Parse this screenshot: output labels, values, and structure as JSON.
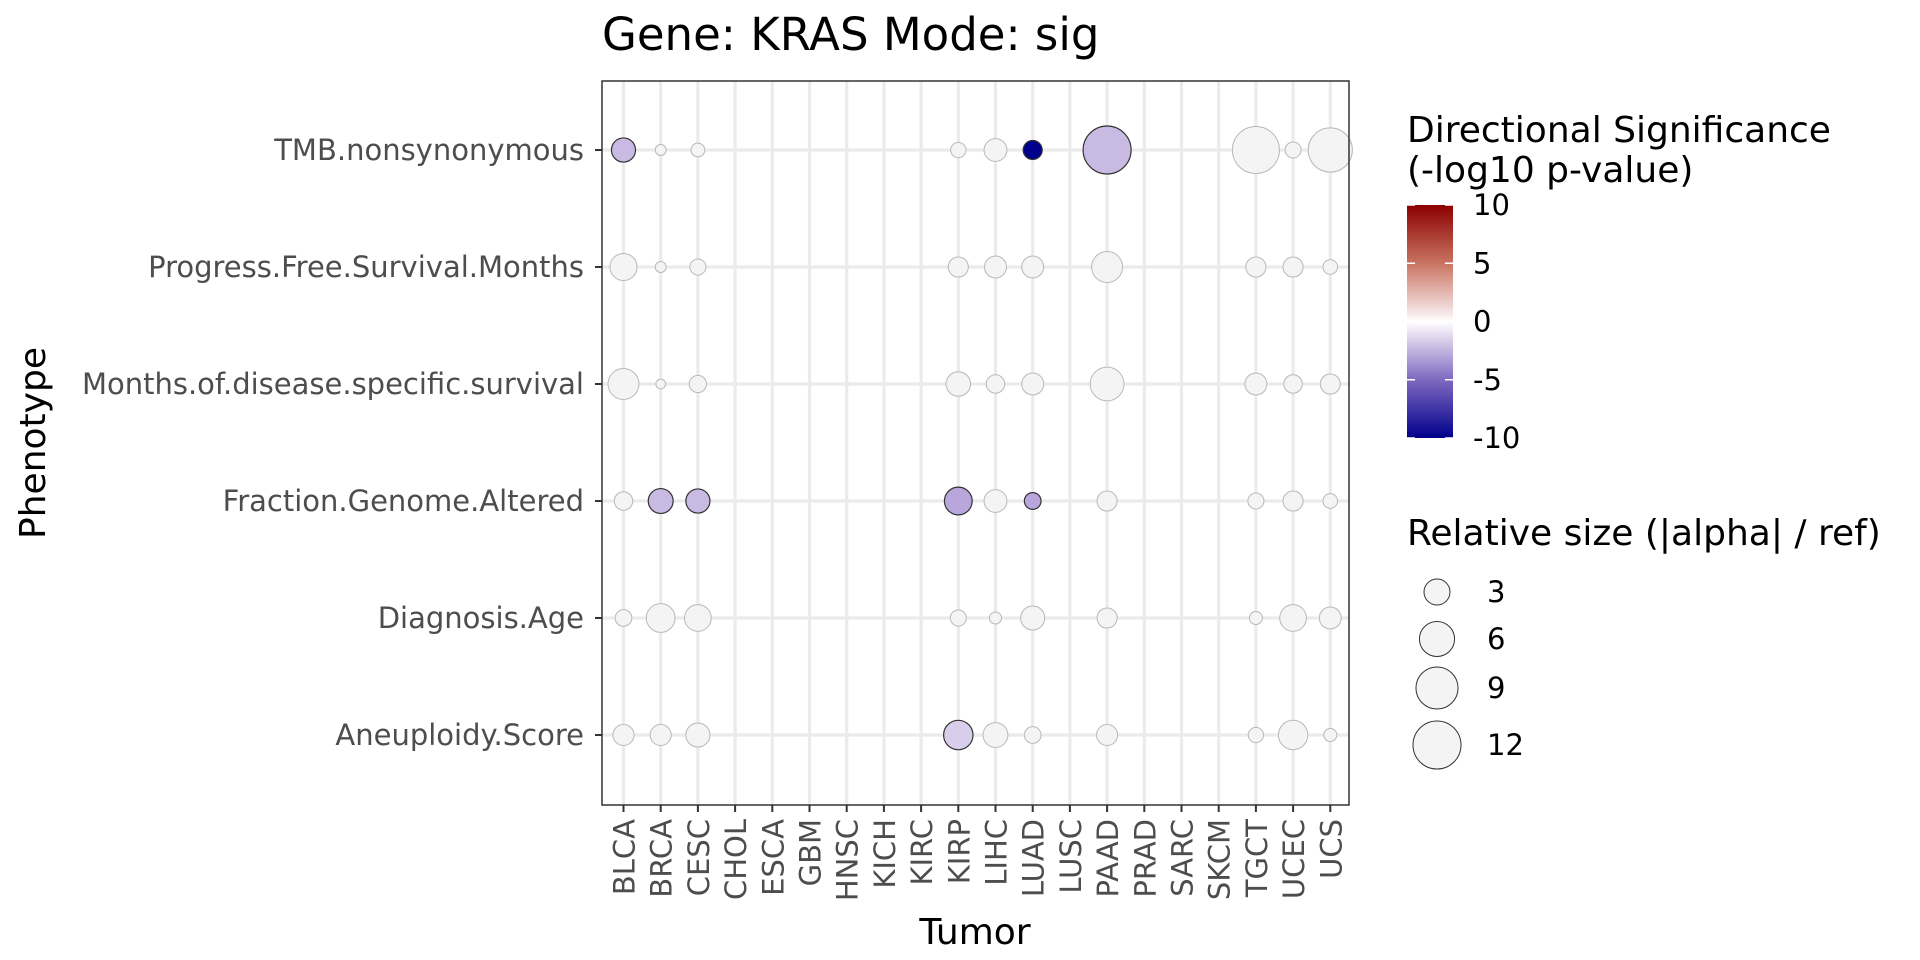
{
  "chart_data": {
    "type": "scatter",
    "title": "Gene: KRAS Mode: sig",
    "xlabel": "Tumor",
    "ylabel": "Phenotype",
    "grid": true,
    "x_categories": [
      "BLCA",
      "BRCA",
      "CESC",
      "CHOL",
      "ESCA",
      "GBM",
      "HNSC",
      "KICH",
      "KIRC",
      "KIRP",
      "LIHC",
      "LUAD",
      "LUSC",
      "PAAD",
      "PRAD",
      "SARC",
      "SKCM",
      "TGCT",
      "UCEC",
      "UCS"
    ],
    "y_categories": [
      "TMB.nonsynonymous",
      "Progress.Free.Survival.Months",
      "Months.of.disease.specific.survival",
      "Fraction.Genome.Altered",
      "Diagnosis.Age",
      "Aneuploidy.Score"
    ],
    "points": [
      {
        "x": "BLCA",
        "y": "TMB.nonsynonymous",
        "size": 2.5,
        "sig": -4
      },
      {
        "x": "BRCA",
        "y": "TMB.nonsynonymous",
        "size": 0.3,
        "sig": 0
      },
      {
        "x": "CESC",
        "y": "TMB.nonsynonymous",
        "size": 0.6,
        "sig": 0
      },
      {
        "x": "KIRP",
        "y": "TMB.nonsynonymous",
        "size": 0.8,
        "sig": 0
      },
      {
        "x": "LIHC",
        "y": "TMB.nonsynonymous",
        "size": 2.2,
        "sig": 0
      },
      {
        "x": "LUAD",
        "y": "TMB.nonsynonymous",
        "size": 1.4,
        "sig": -10
      },
      {
        "x": "PAAD",
        "y": "TMB.nonsynonymous",
        "size": 12,
        "sig": -4
      },
      {
        "x": "TGCT",
        "y": "TMB.nonsynonymous",
        "size": 11.5,
        "sig": 0
      },
      {
        "x": "UCEC",
        "y": "TMB.nonsynonymous",
        "size": 0.9,
        "sig": 0
      },
      {
        "x": "UCS",
        "y": "TMB.nonsynonymous",
        "size": 10,
        "sig": 0
      },
      {
        "x": "BLCA",
        "y": "Progress.Free.Survival.Months",
        "size": 3.3,
        "sig": 0
      },
      {
        "x": "BRCA",
        "y": "Progress.Free.Survival.Months",
        "size": 0.3,
        "sig": 0
      },
      {
        "x": "CESC",
        "y": "Progress.Free.Survival.Months",
        "size": 0.9,
        "sig": 0
      },
      {
        "x": "KIRP",
        "y": "Progress.Free.Survival.Months",
        "size": 1.6,
        "sig": 0
      },
      {
        "x": "LIHC",
        "y": "Progress.Free.Survival.Months",
        "size": 2,
        "sig": 0
      },
      {
        "x": "LUAD",
        "y": "Progress.Free.Survival.Months",
        "size": 2,
        "sig": 0
      },
      {
        "x": "PAAD",
        "y": "Progress.Free.Survival.Months",
        "size": 4.5,
        "sig": 0
      },
      {
        "x": "TGCT",
        "y": "Progress.Free.Survival.Months",
        "size": 1.6,
        "sig": 0
      },
      {
        "x": "UCEC",
        "y": "Progress.Free.Survival.Months",
        "size": 1.6,
        "sig": 0
      },
      {
        "x": "UCS",
        "y": "Progress.Free.Survival.Months",
        "size": 0.7,
        "sig": 0
      },
      {
        "x": "BLCA",
        "y": "Months.of.disease.specific.survival",
        "size": 4.5,
        "sig": 0
      },
      {
        "x": "BRCA",
        "y": "Months.of.disease.specific.survival",
        "size": 0.2,
        "sig": 0
      },
      {
        "x": "CESC",
        "y": "Months.of.disease.specific.survival",
        "size": 1.1,
        "sig": 0
      },
      {
        "x": "KIRP",
        "y": "Months.of.disease.specific.survival",
        "size": 2.6,
        "sig": 0
      },
      {
        "x": "LIHC",
        "y": "Months.of.disease.specific.survival",
        "size": 1.3,
        "sig": 0
      },
      {
        "x": "LUAD",
        "y": "Months.of.disease.specific.survival",
        "size": 2,
        "sig": 0
      },
      {
        "x": "PAAD",
        "y": "Months.of.disease.specific.survival",
        "size": 5.5,
        "sig": 0
      },
      {
        "x": "TGCT",
        "y": "Months.of.disease.specific.survival",
        "size": 2,
        "sig": 0
      },
      {
        "x": "UCEC",
        "y": "Months.of.disease.specific.survival",
        "size": 1.3,
        "sig": 0
      },
      {
        "x": "UCS",
        "y": "Months.of.disease.specific.survival",
        "size": 1.6,
        "sig": 0
      },
      {
        "x": "BLCA",
        "y": "Fraction.Genome.Altered",
        "size": 1.3,
        "sig": 0
      },
      {
        "x": "BRCA",
        "y": "Fraction.Genome.Altered",
        "size": 2.7,
        "sig": -4
      },
      {
        "x": "CESC",
        "y": "Fraction.Genome.Altered",
        "size": 2.5,
        "sig": -4
      },
      {
        "x": "KIRP",
        "y": "Fraction.Genome.Altered",
        "size": 3.5,
        "sig": -5
      },
      {
        "x": "LIHC",
        "y": "Fraction.Genome.Altered",
        "size": 2.2,
        "sig": 0
      },
      {
        "x": "LUAD",
        "y": "Fraction.Genome.Altered",
        "size": 1,
        "sig": -5
      },
      {
        "x": "PAAD",
        "y": "Fraction.Genome.Altered",
        "size": 1.6,
        "sig": 0
      },
      {
        "x": "TGCT",
        "y": "Fraction.Genome.Altered",
        "size": 0.9,
        "sig": 0
      },
      {
        "x": "UCEC",
        "y": "Fraction.Genome.Altered",
        "size": 1.6,
        "sig": 0
      },
      {
        "x": "UCS",
        "y": "Fraction.Genome.Altered",
        "size": 0.7,
        "sig": 0
      },
      {
        "x": "BLCA",
        "y": "Diagnosis.Age",
        "size": 1,
        "sig": 0
      },
      {
        "x": "BRCA",
        "y": "Diagnosis.Age",
        "size": 3.8,
        "sig": 0
      },
      {
        "x": "CESC",
        "y": "Diagnosis.Age",
        "size": 3.2,
        "sig": 0
      },
      {
        "x": "KIRP",
        "y": "Diagnosis.Age",
        "size": 0.9,
        "sig": 0
      },
      {
        "x": "LIHC",
        "y": "Diagnosis.Age",
        "size": 0.4,
        "sig": 0
      },
      {
        "x": "LUAD",
        "y": "Diagnosis.Age",
        "size": 2.5,
        "sig": 0
      },
      {
        "x": "PAAD",
        "y": "Diagnosis.Age",
        "size": 1.6,
        "sig": 0
      },
      {
        "x": "TGCT",
        "y": "Diagnosis.Age",
        "size": 0.5,
        "sig": 0
      },
      {
        "x": "UCEC",
        "y": "Diagnosis.Age",
        "size": 3.2,
        "sig": 0
      },
      {
        "x": "UCS",
        "y": "Diagnosis.Age",
        "size": 2,
        "sig": 0
      },
      {
        "x": "BLCA",
        "y": "Aneuploidy.Score",
        "size": 1.8,
        "sig": 0
      },
      {
        "x": "BRCA",
        "y": "Aneuploidy.Score",
        "size": 1.8,
        "sig": 0
      },
      {
        "x": "CESC",
        "y": "Aneuploidy.Score",
        "size": 2.5,
        "sig": 0
      },
      {
        "x": "KIRP",
        "y": "Aneuploidy.Score",
        "size": 4,
        "sig": -3
      },
      {
        "x": "LIHC",
        "y": "Aneuploidy.Score",
        "size": 2.7,
        "sig": 0
      },
      {
        "x": "LUAD",
        "y": "Aneuploidy.Score",
        "size": 1,
        "sig": 0
      },
      {
        "x": "PAAD",
        "y": "Aneuploidy.Score",
        "size": 1.8,
        "sig": 0
      },
      {
        "x": "TGCT",
        "y": "Aneuploidy.Score",
        "size": 0.8,
        "sig": 0
      },
      {
        "x": "UCEC",
        "y": "Aneuploidy.Score",
        "size": 4,
        "sig": 0
      },
      {
        "x": "UCS",
        "y": "Aneuploidy.Score",
        "size": 0.5,
        "sig": 0
      }
    ],
    "color_legend": {
      "title_line1": "Directional Significance",
      "title_line2": "(-log10 p-value)",
      "range": [
        -10,
        10
      ],
      "ticks": [
        10,
        5,
        0,
        -5,
        -10
      ],
      "colors": {
        "high": "#8b0000",
        "mid": "#ffffff",
        "low": "#00008b"
      }
    },
    "size_legend": {
      "title": "Relative size (|alpha| / ref)",
      "breaks": [
        3,
        6,
        9,
        12
      ]
    }
  }
}
